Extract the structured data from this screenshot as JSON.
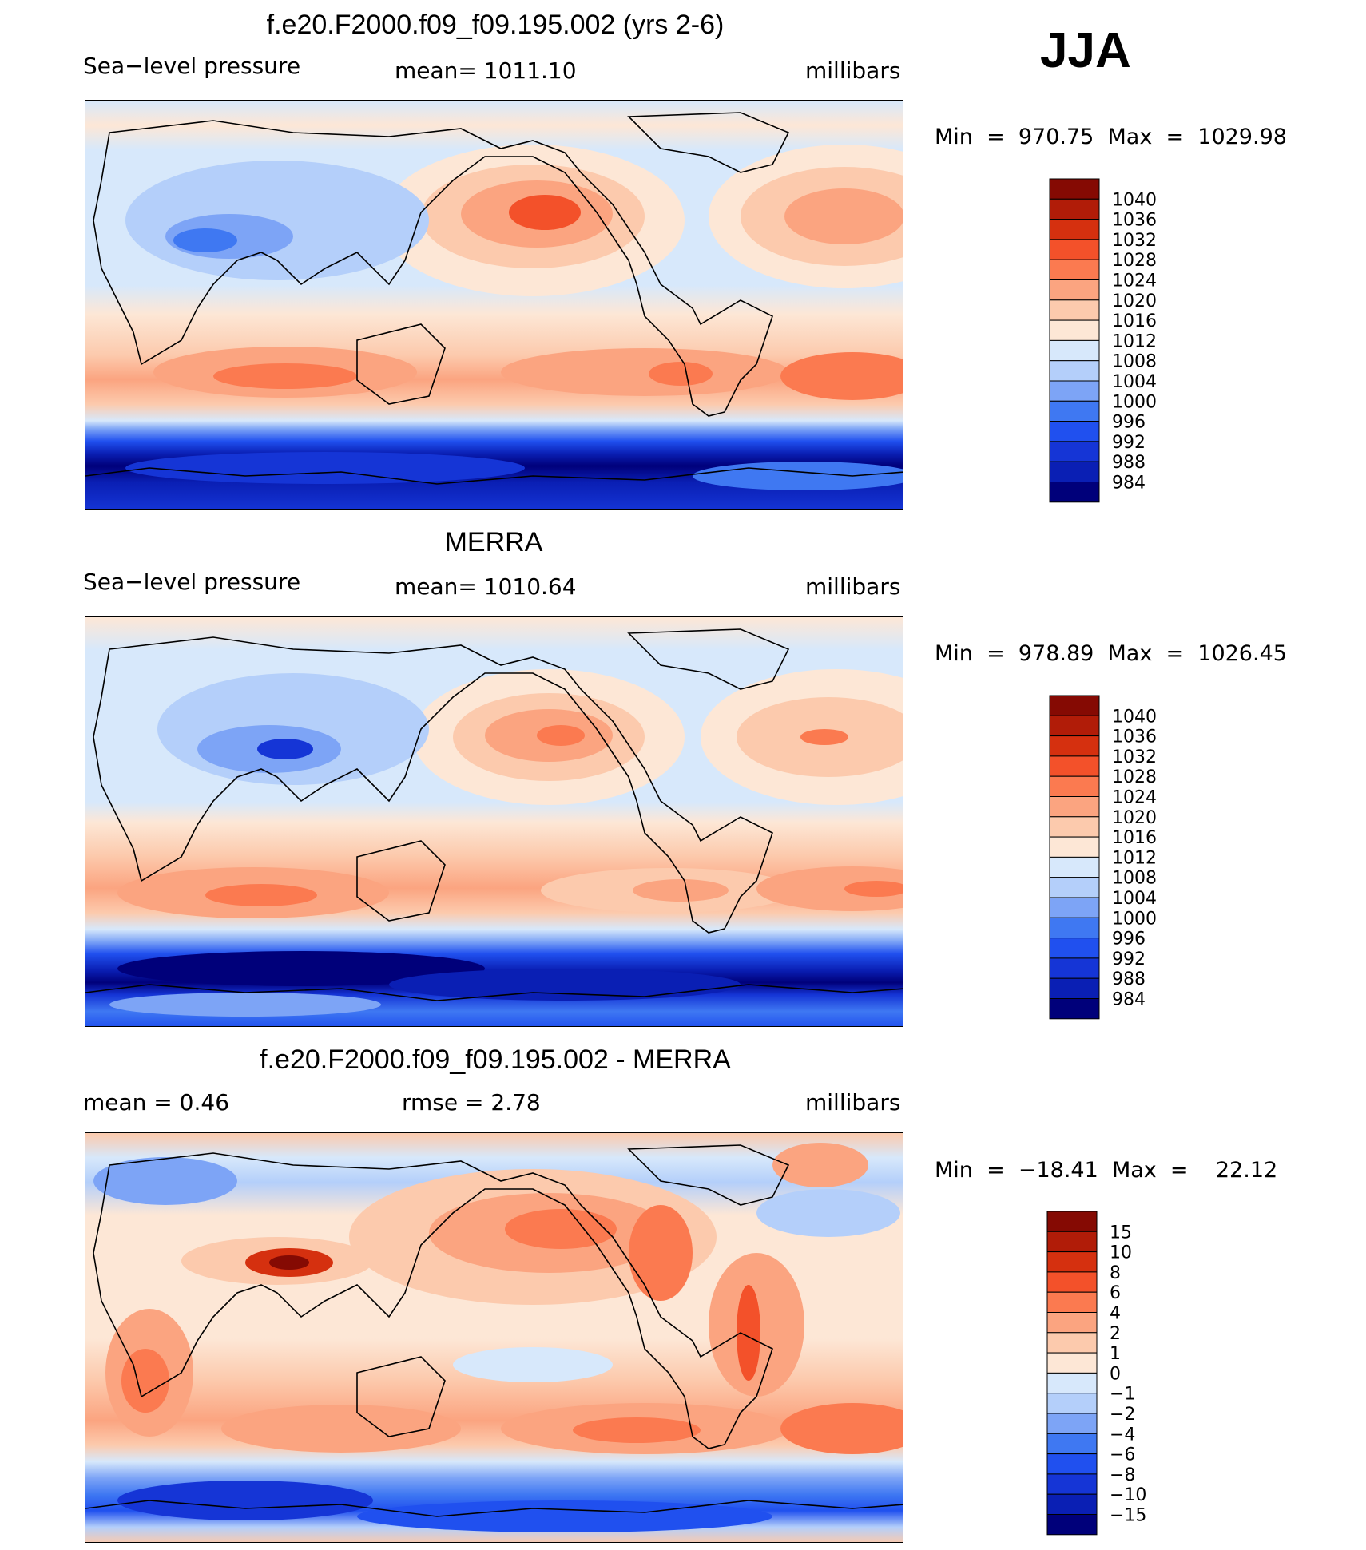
{
  "season": "JJA",
  "colors": {
    "spr_scale": [
      "#00007a",
      "#0a1fb4",
      "#1535d6",
      "#2050ef",
      "#3f78f2",
      "#7da4f6",
      "#b4cffa",
      "#d7e8fb",
      "#fde7d6",
      "#fccaad",
      "#fba480",
      "#fb7a50",
      "#f3512a",
      "#d5300f",
      "#b11c08",
      "#850a03"
    ],
    "diff_scale": [
      "#00007a",
      "#0a1fb4",
      "#1535d6",
      "#2050ef",
      "#3f78f2",
      "#7da4f6",
      "#b4cffa",
      "#d7e8fb",
      "#fde7d6",
      "#fccaad",
      "#fba480",
      "#fb7a50",
      "#f3512a",
      "#d5300f",
      "#b11c08",
      "#850a03"
    ]
  },
  "panels": [
    {
      "title": "f.e20.F2000.f09_f09.195.002 (yrs 2-6)",
      "left_label": "Sea−level pressure",
      "mid_label": "mean=  1011.10",
      "units": "millibars",
      "minmax": "Min  =  970.75  Max  =  1029.98"
    },
    {
      "title": "MERRA",
      "left_label": "Sea−level pressure",
      "mid_label": "mean=  1010.64",
      "units": "millibars",
      "minmax": "Min  =  978.89  Max  =  1026.45"
    },
    {
      "title": "f.e20.F2000.f09_f09.195.002 - MERRA",
      "left_label": "mean  =     0.46",
      "mid_label": "rmse  =     2.78",
      "units": "millibars",
      "minmax": "Min  =  −18.41  Max  =    22.12"
    }
  ],
  "chart_data": [
    {
      "type": "heatmap",
      "title": "f.e20.F2000.f09_f09.195.002 (yrs 2-6)",
      "variable": "Sea−level pressure",
      "units": "millibars",
      "mean": 1011.1,
      "min": 970.75,
      "max": 1029.98,
      "projection": "global cylindrical equidistant, Pacific-centered",
      "colorbar_levels": [
        "1040",
        "1036",
        "1032",
        "1028",
        "1024",
        "1020",
        "1016",
        "1012",
        "1008",
        "1004",
        "1000",
        "996",
        "992",
        "988",
        "984"
      ]
    },
    {
      "type": "heatmap",
      "title": "MERRA",
      "variable": "Sea−level pressure",
      "units": "millibars",
      "mean": 1010.64,
      "min": 978.89,
      "max": 1026.45,
      "projection": "global cylindrical equidistant, Pacific-centered",
      "colorbar_levels": [
        "1040",
        "1036",
        "1032",
        "1028",
        "1024",
        "1020",
        "1016",
        "1012",
        "1008",
        "1004",
        "1000",
        "996",
        "992",
        "988",
        "984"
      ]
    },
    {
      "type": "heatmap",
      "title": "f.e20.F2000.f09_f09.195.002 - MERRA",
      "units": "millibars",
      "mean": 0.46,
      "rmse": 2.78,
      "min": -18.41,
      "max": 22.12,
      "projection": "global cylindrical equidistant, Pacific-centered",
      "colorbar_levels": [
        "15",
        "10",
        "8",
        "6",
        "4",
        "2",
        "1",
        "0",
        "−1",
        "−2",
        "−4",
        "−6",
        "−8",
        "−10",
        "−15"
      ]
    }
  ]
}
